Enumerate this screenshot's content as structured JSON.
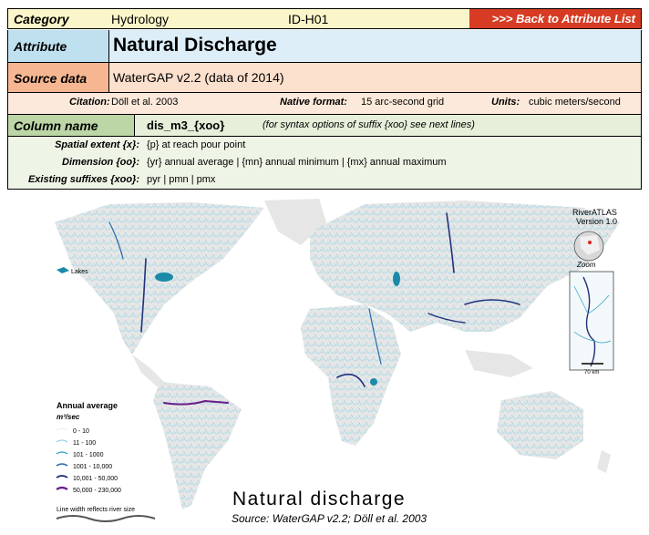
{
  "header": {
    "category_label": "Category",
    "category_value": "Hydrology",
    "id": "ID-H01",
    "back_link": ">>> Back to Attribute List"
  },
  "attribute": {
    "label": "Attribute",
    "value": "Natural Discharge"
  },
  "source": {
    "label": "Source data",
    "value": "WaterGAP v2.2 (data of 2014)",
    "citation_label": "Citation:",
    "citation_value": "Döll et al. 2003",
    "format_label": "Native format:",
    "format_value": "15 arc-second grid",
    "units_label": "Units:",
    "units_value": "cubic meters/second"
  },
  "column": {
    "label": "Column name",
    "value": "dis_m3_{xoo}",
    "note": "(for syntax options of suffix {xoo} see next lines)",
    "spatial_label": "Spatial extent {x}:",
    "spatial_value": "{p} at reach pour point",
    "dimension_label": "Dimension {oo}:",
    "dimension_value": "{yr} annual average  |  {mn} annual minimum  |  {mx} annual maximum",
    "suffix_label": "Existing suffixes {xoo}:",
    "suffix_value": "pyr  |  pmn  |  pmx"
  },
  "map": {
    "lakes_label": "Lakes",
    "brand_line1": "RiverATLAS",
    "brand_line2": "Version 1.0",
    "zoom_label": "Zoom",
    "scale_label": "70 km",
    "legend_title": "Annual average",
    "legend_unit": "m³/sec",
    "legend_classes": [
      "0 - 10",
      "11 - 100",
      "101 - 1000",
      "1001 - 10,000",
      "10,001 - 50,000",
      "50,000 - 230,000"
    ],
    "legend_note": "Line width reflects river size",
    "title": "Natural discharge",
    "subtitle": "Source: WaterGAP v2.2; Döll et al. 2003",
    "colors": {
      "land": "#e6e6e6",
      "river_light": "#9fd8e8",
      "river_mid": "#2aa0c6",
      "river_dark": "#21307a",
      "river_purple": "#6a1e8a",
      "lake": "#1b8aa8"
    }
  }
}
